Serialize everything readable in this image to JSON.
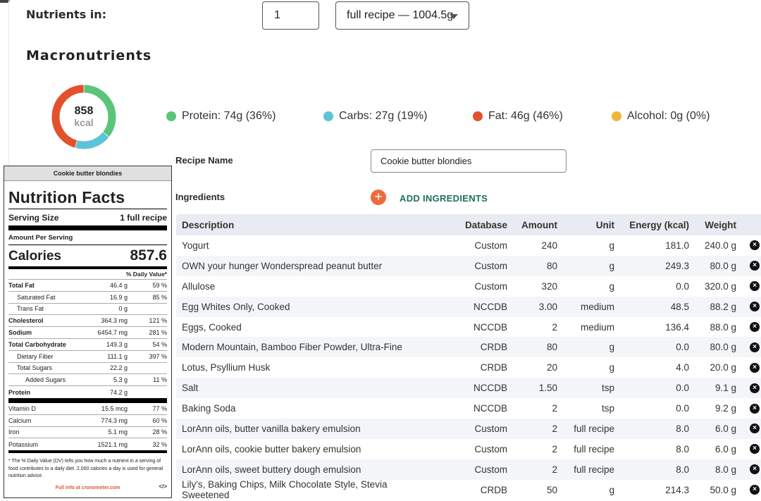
{
  "header": {
    "nutrients_in_label": "Nutrients in:",
    "quantity_value": "1",
    "unit_selected": "full recipe — 1004.5g"
  },
  "macros": {
    "title": "Macronutrients",
    "kcal_value": "858",
    "kcal_unit": "kcal",
    "legend": [
      {
        "label": "Protein: 74g (36%)",
        "color": "#5ac57a",
        "percent": 36
      },
      {
        "label": "Carbs: 27g (19%)",
        "color": "#5bc4d6",
        "percent": 19
      },
      {
        "label": "Fat: 46g (46%)",
        "color": "#e2512b",
        "percent": 46
      },
      {
        "label": "Alcohol: 0g (0%)",
        "color": "#f2b538",
        "percent": 0
      }
    ]
  },
  "nutrition_label": {
    "header": "Cookie butter blondies",
    "title": "Nutrition Facts",
    "serving_size_label": "Serving Size",
    "serving_size_value": "1 full recipe",
    "amount_per_serving": "Amount Per Serving",
    "calories_label": "Calories",
    "calories_value": "857.6",
    "dv_header": "% Daily Value*",
    "rows": [
      {
        "name": "Total Fat",
        "amount": "46.4 g",
        "pct": "59 %"
      },
      {
        "name": "Saturated Fat",
        "amount": "16.9 g",
        "pct": "85 %"
      },
      {
        "name": "Trans Fat",
        "amount": "0 g",
        "pct": ""
      },
      {
        "name": "Cholesterol",
        "amount": "364.3 mg",
        "pct": "121 %"
      },
      {
        "name": "Sodium",
        "amount": "6454.7 mg",
        "pct": "281 %"
      },
      {
        "name": "Total Carbohydrate",
        "amount": "149.3 g",
        "pct": "54 %"
      },
      {
        "name": "Dietary Fiber",
        "amount": "111.1 g",
        "pct": "397 %"
      },
      {
        "name": "Total Sugars",
        "amount": "22.2 g",
        "pct": ""
      },
      {
        "name": "Added Sugars",
        "amount": "5.3 g",
        "pct": "11 %"
      },
      {
        "name": "Protein",
        "amount": "74.2 g",
        "pct": ""
      }
    ],
    "vitamins": [
      {
        "name": "Vitamin D",
        "amount": "15.5 mcg",
        "pct": "77 %"
      },
      {
        "name": "Calcium",
        "amount": "774.3 mg",
        "pct": "60 %"
      },
      {
        "name": "Iron",
        "amount": "5.1 mg",
        "pct": "28 %"
      },
      {
        "name": "Potassium",
        "amount": "1521.1 mg",
        "pct": "32 %"
      }
    ],
    "footnote": "* The % Daily Value (DV) tells you how much a nutrient in a serving of food contributes to a daily diet. 2,000 calories a day is used for general nutrition advice.",
    "link": "Full info at cronometer.com",
    "embed": "</>"
  },
  "recipe": {
    "name_label": "Recipe Name",
    "name_value": "Cookie butter blondies",
    "ingredients_label": "Ingredients",
    "add_icon": "+",
    "add_label": "ADD INGREDIENTS"
  },
  "table": {
    "columns": [
      "Description",
      "Database",
      "Amount",
      "Unit",
      "Energy (kcal)",
      "Weight"
    ],
    "rows": [
      {
        "desc": "Yogurt",
        "db": "Custom",
        "amount": "240",
        "unit": "g",
        "energy": "181.0",
        "weight": "240.0 g"
      },
      {
        "desc": "OWN your hunger Wonderspread peanut butter",
        "db": "Custom",
        "amount": "80",
        "unit": "g",
        "energy": "249.3",
        "weight": "80.0 g"
      },
      {
        "desc": "Allulose",
        "db": "Custom",
        "amount": "320",
        "unit": "g",
        "energy": "0.0",
        "weight": "320.0 g"
      },
      {
        "desc": "Egg Whites Only, Cooked",
        "db": "NCCDB",
        "amount": "3.00",
        "unit": "medium",
        "energy": "48.5",
        "weight": "88.2 g"
      },
      {
        "desc": "Eggs, Cooked",
        "db": "NCCDB",
        "amount": "2",
        "unit": "medium",
        "energy": "136.4",
        "weight": "88.0 g"
      },
      {
        "desc": "Modern Mountain, Bamboo Fiber Powder, Ultra-Fine",
        "db": "CRDB",
        "amount": "80",
        "unit": "g",
        "energy": "0.0",
        "weight": "80.0 g"
      },
      {
        "desc": "Lotus, Psyllium Husk",
        "db": "CRDB",
        "amount": "20",
        "unit": "g",
        "energy": "4.0",
        "weight": "20.0 g"
      },
      {
        "desc": "Salt",
        "db": "NCCDB",
        "amount": "1.50",
        "unit": "tsp",
        "energy": "0.0",
        "weight": "9.1 g"
      },
      {
        "desc": "Baking Soda",
        "db": "NCCDB",
        "amount": "2",
        "unit": "tsp",
        "energy": "0.0",
        "weight": "9.2 g"
      },
      {
        "desc": "LorAnn oils, butter vanilla bakery emulsion",
        "db": "Custom",
        "amount": "2",
        "unit": "full recipe",
        "energy": "8.0",
        "weight": "6.0 g"
      },
      {
        "desc": "LorAnn oils, cookie butter bakery emulsion",
        "db": "Custom",
        "amount": "2",
        "unit": "full recipe",
        "energy": "8.0",
        "weight": "6.0 g"
      },
      {
        "desc": "LorAnn oils, sweet buttery dough emulsion",
        "db": "Custom",
        "amount": "2",
        "unit": "full recipe",
        "energy": "8.0",
        "weight": "8.0 g"
      },
      {
        "desc": "Lily's, Baking Chips, Milk Chocolate Style, Stevia Sweetened",
        "db": "CRDB",
        "amount": "50",
        "unit": "g",
        "energy": "214.3",
        "weight": "50.0 g"
      }
    ],
    "delete_icon": "×"
  }
}
